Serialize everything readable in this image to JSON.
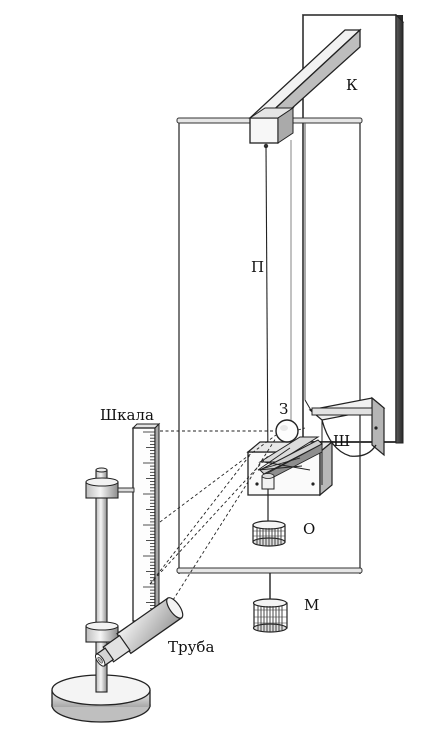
{
  "labels": {
    "k": "К",
    "p": "П",
    "z": "З",
    "sh": "Ш",
    "o": "О",
    "m": "М",
    "scale": "Шкала",
    "tube": "Труба"
  }
}
